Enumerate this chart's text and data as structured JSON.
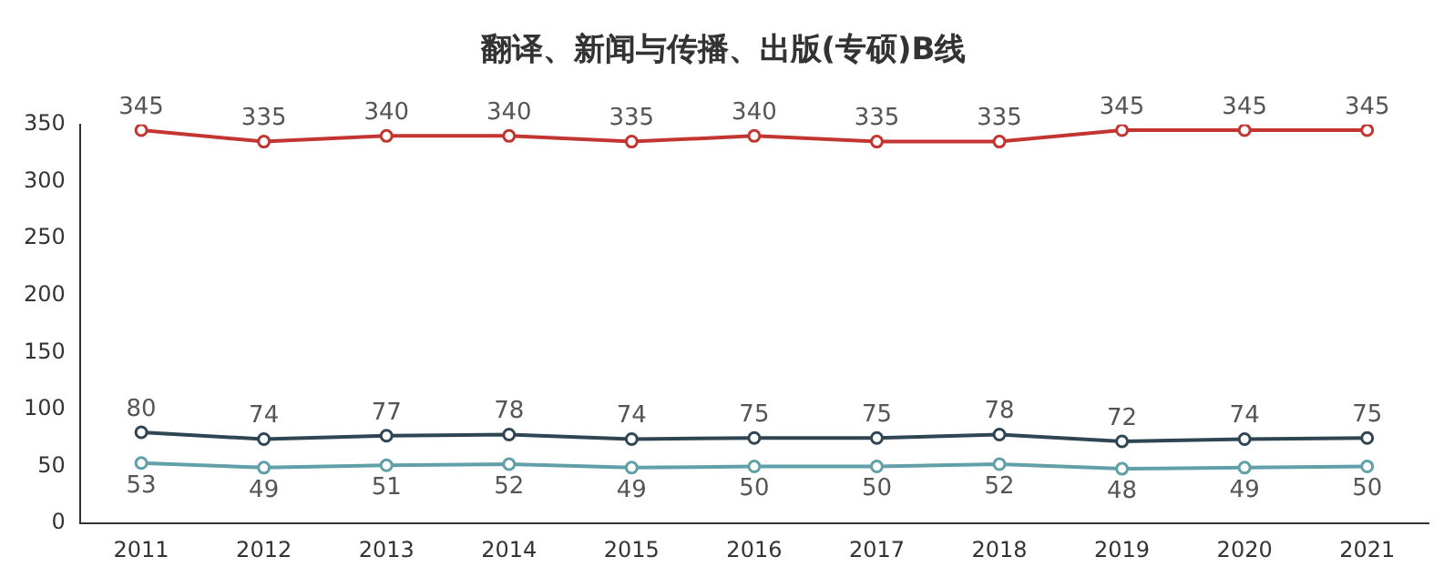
{
  "chart_data": {
    "type": "line",
    "title": "翻译、新闻与传播、出版(专硕)B线",
    "categories": [
      "2011",
      "2012",
      "2013",
      "2014",
      "2015",
      "2016",
      "2017",
      "2018",
      "2019",
      "2020",
      "2021"
    ],
    "series": [
      {
        "color": "#c23531",
        "values": [
          345,
          335,
          340,
          340,
          335,
          340,
          335,
          335,
          345,
          345,
          345
        ]
      },
      {
        "color": "#2f4554",
        "values": [
          80,
          74,
          77,
          78,
          74,
          75,
          75,
          78,
          72,
          74,
          75
        ]
      },
      {
        "color": "#61a0a8",
        "values": [
          53,
          49,
          51,
          52,
          49,
          50,
          50,
          52,
          48,
          49,
          50
        ]
      }
    ],
    "ylim": [
      0,
      350
    ],
    "yticks": [
      0,
      50,
      100,
      150,
      200,
      250,
      300,
      350
    ],
    "grid": false,
    "legend": false,
    "marker": "circle",
    "line_style": "solid",
    "data_labels": true
  }
}
